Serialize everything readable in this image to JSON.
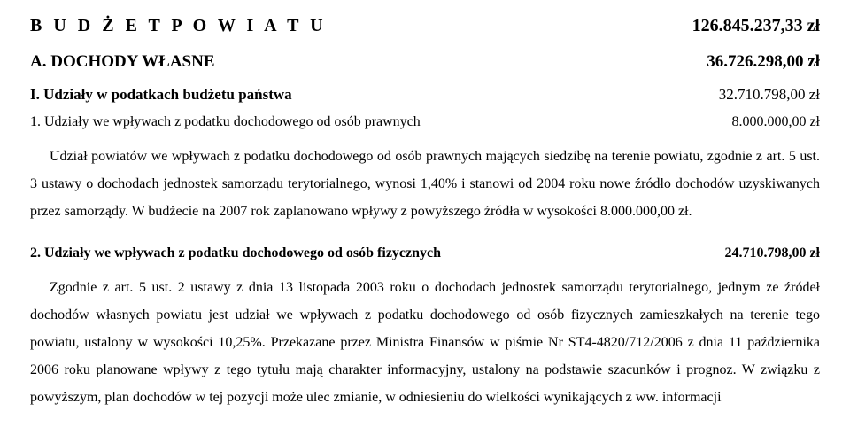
{
  "header": {
    "title": "B U D Ż E T    P O W I A T U",
    "amount": "126.845.237,33 zł"
  },
  "sectionA": {
    "title": "A. DOCHODY WŁASNE",
    "amount": "36.726.298,00 zł"
  },
  "sectionI": {
    "title": "I. Udziały w podatkach budżetu państwa",
    "amount": "32.710.798,00 zł"
  },
  "item1": {
    "title": "1. Udziały we wpływach z podatku dochodowego od osób prawnych",
    "amount": "8.000.000,00 zł"
  },
  "para1": "Udział powiatów we wpływach z podatku dochodowego od osób prawnych mających siedzibę na terenie powiatu, zgodnie z art. 5 ust. 3 ustawy o dochodach jednostek samorządu terytorialnego, wynosi 1,40% i stanowi od 2004 roku nowe źródło dochodów uzyskiwanych przez samorządy. W budżecie na 2007 rok zaplanowano wpływy z powyższego źródła w wysokości 8.000.000,00 zł.",
  "item2": {
    "title": "2. Udziały we wpływach z podatku dochodowego od osób fizycznych",
    "amount": "24.710.798,00 zł"
  },
  "para2": "Zgodnie z art. 5 ust. 2 ustawy z dnia 13 listopada 2003 roku o dochodach jednostek samorządu terytorialnego, jednym ze źródeł dochodów własnych powiatu jest udział we wpływach z podatku dochodowego od osób fizycznych zamieszkałych na terenie tego powiatu, ustalony w wysokości 10,25%. Przekazane przez Ministra Finansów w piśmie Nr ST4-4820/712/2006 z dnia 11 października 2006 roku planowane wpływy z tego tytułu mają charakter informacyjny, ustalony na podstawie szacunków i prognoz. W związku z powyższym, plan dochodów w tej pozycji może ulec zmianie, w odniesieniu do wielkości wynikających z ww. informacji"
}
